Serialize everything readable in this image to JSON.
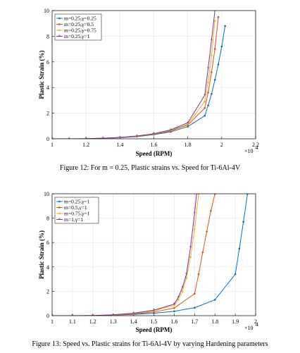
{
  "chart_data": [
    {
      "type": "line",
      "xlabel": "Speed (RPM)",
      "ylabel": "Plastic Strain (%)",
      "x_multiplier": "×10",
      "x_multiplier_exp": "4",
      "caption": "Figure 12: For m = 0.25, Plastic strains vs. Speed for Ti-6Al-4V",
      "xlim": [
        1,
        2.2
      ],
      "ylim": [
        0,
        10
      ],
      "xticks": [
        "1",
        "1.2",
        "1.4",
        "1.6",
        "1.8",
        "2",
        "2.2"
      ],
      "yticks": [
        "0",
        "2",
        "4",
        "6",
        "8",
        "10"
      ],
      "grid": true,
      "legend_position": "top-left",
      "series": [
        {
          "name": "m=0.25,γ=0.25",
          "color": "#0072BD",
          "marker": "dot",
          "x": [
            1.0,
            1.1,
            1.2,
            1.3,
            1.4,
            1.5,
            1.6,
            1.7,
            1.8,
            1.9,
            1.92,
            1.94,
            1.96,
            1.98,
            2.0,
            2.02
          ],
          "y": [
            0,
            0,
            0.01,
            0.03,
            0.08,
            0.17,
            0.32,
            0.55,
            0.95,
            1.8,
            2.6,
            3.5,
            4.6,
            5.8,
            7.2,
            8.8
          ]
        },
        {
          "name": "m=0.25,γ=0.5",
          "color": "#D95319",
          "marker": "dot",
          "x": [
            1.0,
            1.1,
            1.2,
            1.3,
            1.4,
            1.5,
            1.6,
            1.7,
            1.8,
            1.9,
            1.92,
            1.94,
            1.96,
            1.98
          ],
          "y": [
            0,
            0,
            0.01,
            0.04,
            0.1,
            0.2,
            0.36,
            0.62,
            1.08,
            2.4,
            3.6,
            5.2,
            7.0,
            9.5
          ]
        },
        {
          "name": "m=0.25,γ=0.75",
          "color": "#EDB120",
          "marker": "dot",
          "x": [
            1.0,
            1.1,
            1.2,
            1.3,
            1.4,
            1.5,
            1.6,
            1.7,
            1.8,
            1.9,
            1.92,
            1.94,
            1.96
          ],
          "y": [
            0,
            0,
            0.01,
            0.04,
            0.1,
            0.21,
            0.38,
            0.66,
            1.15,
            2.9,
            4.4,
            6.5,
            9.2
          ]
        },
        {
          "name": "m=0.25,γ=1",
          "color": "#7E2F8E",
          "marker": "star",
          "x": [
            1.0,
            1.1,
            1.2,
            1.3,
            1.4,
            1.5,
            1.6,
            1.7,
            1.8,
            1.9,
            1.92,
            1.94,
            1.96
          ],
          "y": [
            0,
            0,
            0.01,
            0.05,
            0.11,
            0.22,
            0.4,
            0.7,
            1.25,
            3.4,
            5.5,
            7.7,
            10.0
          ]
        }
      ]
    },
    {
      "type": "line",
      "xlabel": "Speed (RPM)",
      "ylabel": "Plastic Strain (%)",
      "x_multiplier": "×10",
      "x_multiplier_exp": "4",
      "caption": "Figure 13: Speed vs. Plastic strains for Ti-6Al-4V by varying Hardening parameters",
      "xlim": [
        1,
        2
      ],
      "ylim": [
        0,
        10
      ],
      "xticks": [
        "1",
        "1.1",
        "1.2",
        "1.3",
        "1.4",
        "1.5",
        "1.6",
        "1.7",
        "1.8",
        "1.9",
        "2"
      ],
      "yticks": [
        "0",
        "2",
        "4",
        "6",
        "8",
        "10"
      ],
      "grid": true,
      "legend_position": "top-left",
      "series": [
        {
          "name": "m=0.25,γ=1",
          "color": "#0072BD",
          "marker": "dot",
          "x": [
            1.0,
            1.1,
            1.2,
            1.3,
            1.4,
            1.5,
            1.6,
            1.7,
            1.8,
            1.9,
            1.92,
            1.94,
            1.96
          ],
          "y": [
            0,
            0,
            0.01,
            0.04,
            0.1,
            0.2,
            0.36,
            0.65,
            1.3,
            3.4,
            5.5,
            7.7,
            10.0
          ]
        },
        {
          "name": "m=0.5,γ=1",
          "color": "#D95319",
          "marker": "dot",
          "x": [
            1.0,
            1.1,
            1.2,
            1.3,
            1.4,
            1.5,
            1.6,
            1.7,
            1.72,
            1.74,
            1.76,
            1.78,
            1.8
          ],
          "y": [
            0,
            0,
            0.01,
            0.05,
            0.14,
            0.3,
            0.62,
            1.8,
            3.4,
            5.2,
            6.9,
            8.6,
            10.0
          ]
        },
        {
          "name": "m=0.75,γ=1",
          "color": "#EDB120",
          "marker": "dot",
          "x": [
            1.0,
            1.1,
            1.2,
            1.3,
            1.4,
            1.5,
            1.6,
            1.62,
            1.64,
            1.66,
            1.68,
            1.7,
            1.72
          ],
          "y": [
            0,
            0,
            0.01,
            0.06,
            0.18,
            0.4,
            0.85,
            1.3,
            2.0,
            3.1,
            4.8,
            7.1,
            10.0
          ]
        },
        {
          "name": "m=1,γ=1",
          "color": "#7E2F8E",
          "marker": "star",
          "x": [
            1.0,
            1.1,
            1.2,
            1.3,
            1.4,
            1.5,
            1.6,
            1.62,
            1.64,
            1.66,
            1.68,
            1.7,
            1.71
          ],
          "y": [
            0,
            0,
            0.01,
            0.07,
            0.2,
            0.45,
            0.95,
            1.5,
            2.3,
            3.4,
            5.6,
            8.4,
            10.0
          ]
        }
      ]
    }
  ]
}
